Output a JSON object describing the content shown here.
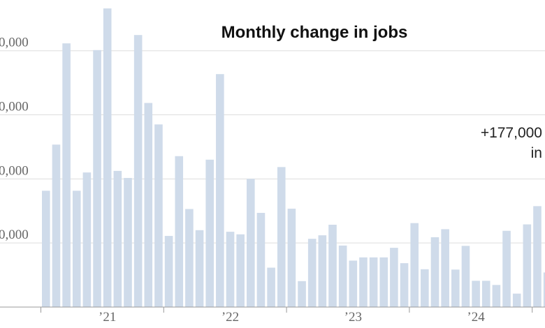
{
  "chart_data": {
    "type": "bar",
    "title": "Monthly change in jobs",
    "ylim": [
      0,
      930
    ],
    "y_ticks": [
      {
        "value": 200,
        "label": "0,000"
      },
      {
        "value": 400,
        "label": "0,000"
      },
      {
        "value": 600,
        "label": "0,000"
      },
      {
        "value": 800,
        "label": "0,000"
      }
    ],
    "x_ticks": [
      {
        "index": 6,
        "label": "’21"
      },
      {
        "index": 18,
        "label": "’22"
      },
      {
        "index": 30,
        "label": "’23"
      },
      {
        "index": 42,
        "label": "’24"
      }
    ],
    "x_year_boundaries": [
      0,
      12,
      24,
      36,
      48
    ],
    "values": [
      363,
      507,
      823,
      363,
      420,
      802,
      932,
      425,
      403,
      849,
      637,
      570,
      222,
      471,
      306,
      240,
      460,
      727,
      235,
      227,
      400,
      294,
      123,
      437,
      307,
      81,
      213,
      224,
      257,
      192,
      145,
      155,
      155,
      155,
      185,
      137,
      262,
      118,
      218,
      243,
      117,
      191,
      82,
      82,
      69,
      238,
      42,
      258,
      315,
      108
    ],
    "annotation": {
      "line1": "+177,000",
      "line2": "in"
    },
    "grid": true,
    "colors": {
      "bar": "#cfdbea",
      "grid": "#dddddd",
      "axis": "#999999",
      "text": "#666666",
      "title": "#111111"
    }
  }
}
